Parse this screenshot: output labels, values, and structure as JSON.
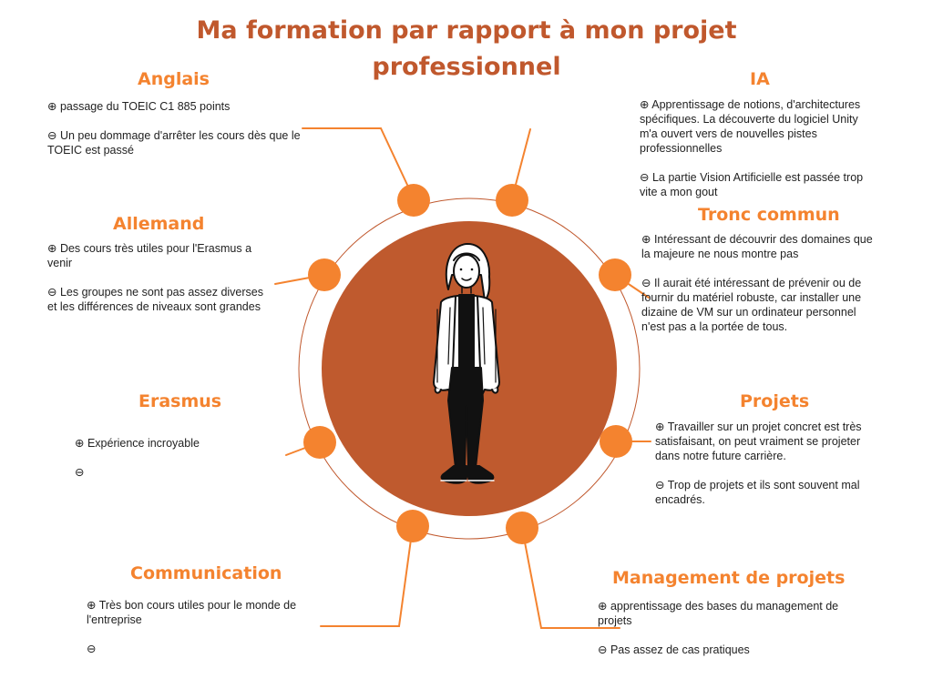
{
  "title": "Ma formation par rapport à mon projet professionnel",
  "colors": {
    "title": "#c0582d",
    "heading": "#f4832f",
    "dot": "#f4832f",
    "center": "#bf5a2e",
    "ring": "#c0582d"
  },
  "center_figure": "person-illustration",
  "sections": {
    "anglais": {
      "heading": "Anglais",
      "pros": "⊕ passage du TOEIC C1 885 points",
      "cons": "⊖ Un peu dommage d'arrêter les cours dès que le TOEIC est passé"
    },
    "allemand": {
      "heading": "Allemand",
      "pros": "⊕ Des cours très utiles pour l'Erasmus a venir",
      "cons": "⊖ Les groupes ne sont pas assez diverses et les différences de niveaux sont grandes"
    },
    "erasmus": {
      "heading": "Erasmus",
      "pros": "⊕ Expérience incroyable",
      "cons": "⊖"
    },
    "communication": {
      "heading": "Communication",
      "pros": "⊕ Très bon cours utiles pour le monde de l'entreprise",
      "cons": "⊖"
    },
    "ia": {
      "heading": "IA",
      "pros": "⊕ Apprentissage de notions, d'architectures spécifiques. La découverte du logiciel Unity m'a ouvert vers de nouvelles pistes professionnelles",
      "cons": "⊖ La partie Vision Artificielle est passée trop vite a mon gout"
    },
    "tronc": {
      "heading": "Tronc commun",
      "pros": "⊕ Intéressant de découvrir des domaines que la majeure ne nous montre pas",
      "cons": "⊖ Il aurait été intéressant de prévenir ou de fournir du matériel robuste, car installer une dizaine de VM sur un ordinateur personnel n'est pas a la portée de tous."
    },
    "projets": {
      "heading": "Projets",
      "pros": "⊕ Travailler sur un projet concret est très satisfaisant, on peut vraiment se projeter dans notre future carrière.",
      "cons": "⊖ Trop de projets et ils sont souvent mal encadrés."
    },
    "management": {
      "heading": "Management de projets",
      "pros": "⊕ apprentissage des bases du management de projets",
      "cons": "⊖ Pas assez de cas pratiques"
    }
  }
}
